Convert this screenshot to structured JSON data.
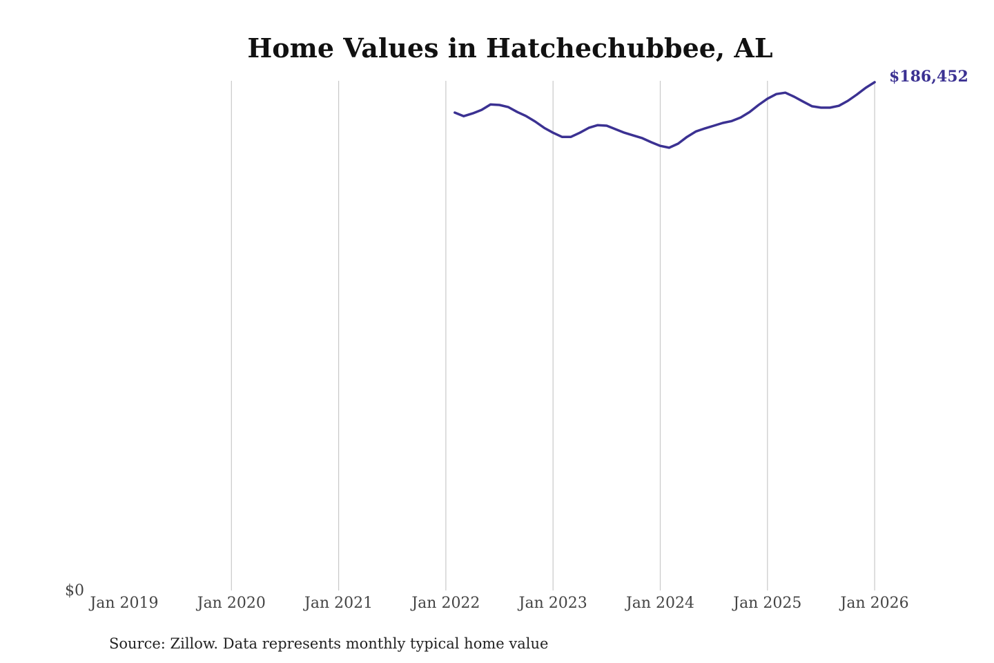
{
  "chart_data": {
    "type": "line",
    "title": "Home Values in Hatchechubbee, AL",
    "source": "Source: Zillow. Data represents monthly typical home value",
    "xlabel": "",
    "ylabel": "",
    "ylim": [
      0,
      186452
    ],
    "y_tick_labels": [
      "$0"
    ],
    "x_ticks": [
      "Jan 2019",
      "Jan 2020",
      "Jan 2021",
      "Jan 2022",
      "Jan 2023",
      "Jan 2024",
      "Jan 2025",
      "Jan 2026"
    ],
    "grid": "vertical",
    "line_color": "#3b3192",
    "end_label": "$186,452",
    "series": [
      {
        "name": "Typical home value",
        "start": "2022-02",
        "values": [
          175300,
          174000,
          175000,
          176300,
          178300,
          178100,
          177300,
          175500,
          174000,
          172000,
          169700,
          167900,
          166400,
          166400,
          167900,
          169700,
          170700,
          170500,
          169200,
          167900,
          166900,
          165900,
          164400,
          163100,
          162400,
          163900,
          166400,
          168400,
          169500,
          170500,
          171500,
          172200,
          173500,
          175500,
          178100,
          180400,
          182100,
          182600,
          181100,
          179300,
          177600,
          177100,
          177100,
          177800,
          179600,
          181900,
          184400,
          186452
        ]
      }
    ]
  }
}
